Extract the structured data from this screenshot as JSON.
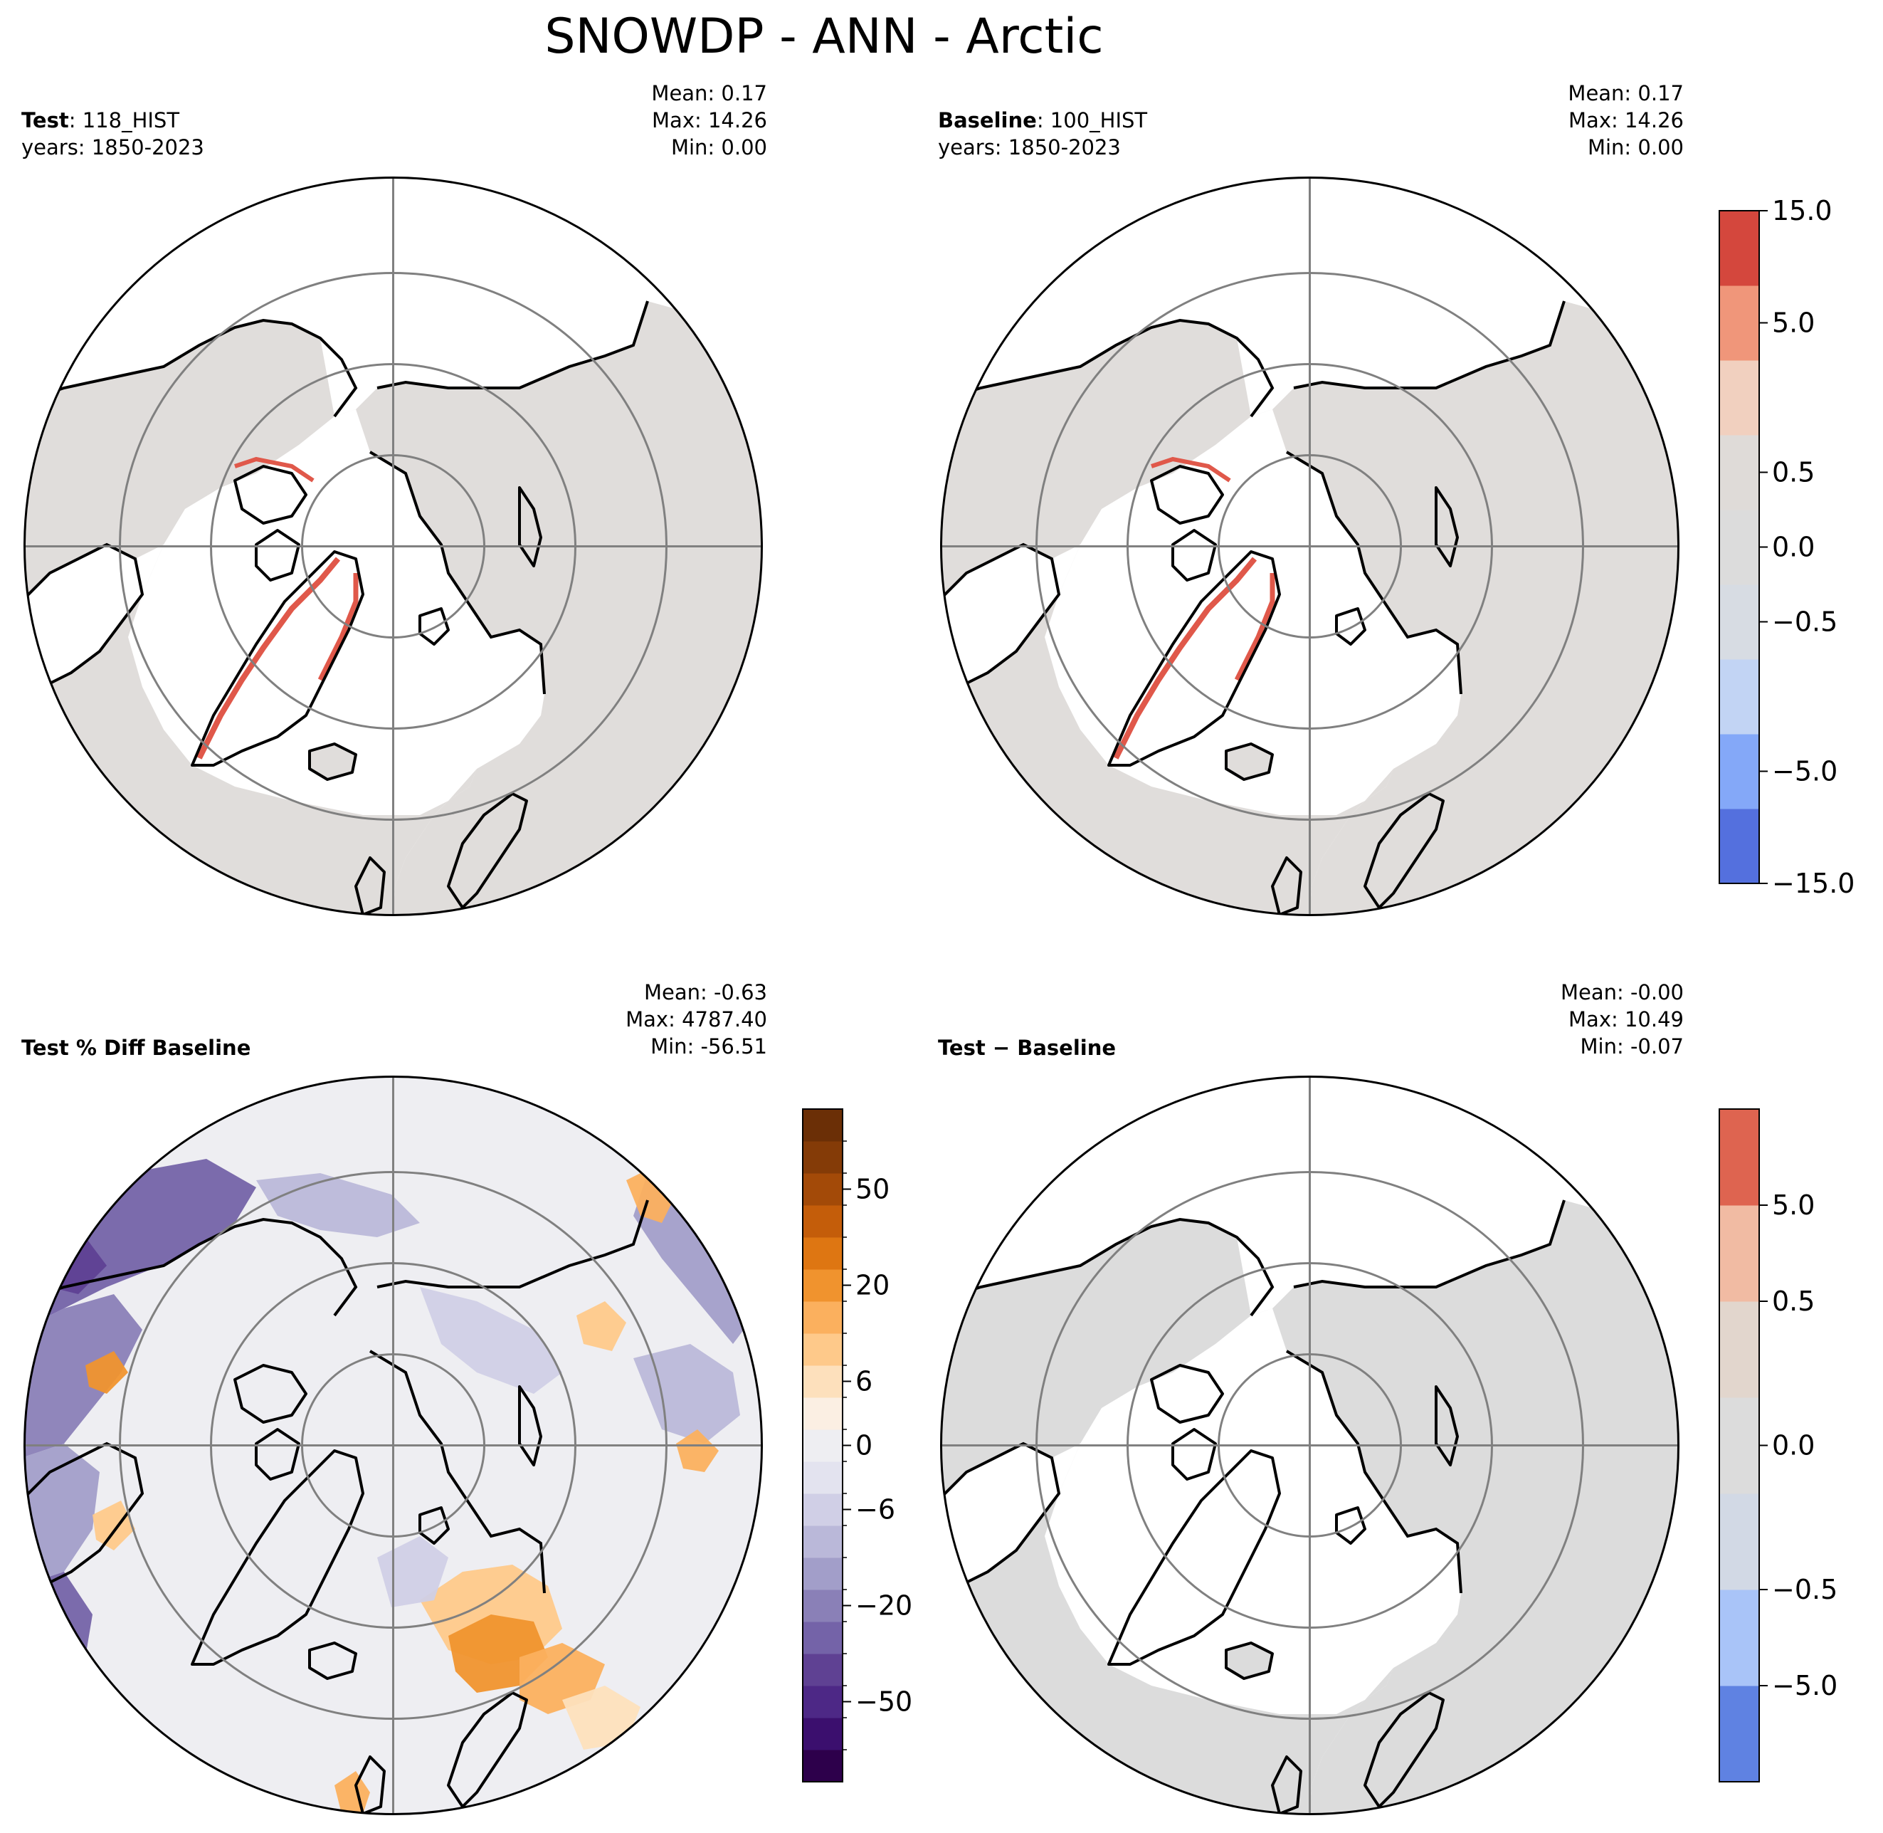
{
  "figure": {
    "title": "SNOWDP - ANN - Arctic"
  },
  "panels": [
    {
      "key": "test",
      "title_bold": "Test",
      "title_rest": ": 118_HIST",
      "subtitle": "years: 1850-2023",
      "stats": {
        "mean": "Mean:  0.17",
        "max": "Max: 14.26",
        "min": "Min:  0.00"
      }
    },
    {
      "key": "baseline",
      "title_bold": "Baseline",
      "title_rest": ": 100_HIST",
      "subtitle": "years: 1850-2023",
      "stats": {
        "mean": "Mean:  0.17",
        "max": "Max: 14.26",
        "min": "Min:  0.00"
      }
    },
    {
      "key": "pctdiff",
      "title_bold": "Test % Diff Baseline",
      "title_rest": "",
      "subtitle": "",
      "stats": {
        "mean": "Mean: -0.63",
        "max": "Max: 4787.40",
        "min": "Min: -56.51"
      }
    },
    {
      "key": "diff",
      "title_bold": "Test − Baseline",
      "title_rest": "",
      "subtitle": "",
      "stats": {
        "mean": "Mean: -0.00",
        "max": "Max: 10.49",
        "min": "Min: -0.07"
      }
    }
  ],
  "colorbars": {
    "main": {
      "ticks": [
        "15.0",
        "5.0",
        "0.5",
        "0.0",
        "−0.5",
        "−5.0",
        "−15.0"
      ],
      "colors": [
        "#5470de",
        "#84a8f8",
        "#c2d4f4",
        "#d7dce3",
        "#dcdcdc",
        "#dfdbd8",
        "#f1d0bf",
        "#f0967a",
        "#d4473d"
      ]
    },
    "pct": {
      "ticks": [
        "50",
        "20",
        "6",
        "0",
        "−6",
        "−20",
        "−50"
      ],
      "colors": [
        "#2d004b",
        "#3b0f6e",
        "#4d2886",
        "#5f4193",
        "#7463a8",
        "#8a80b7",
        "#a29ec9",
        "#bab8d9",
        "#d0cfe6",
        "#e3e3ef",
        "#eeeef2",
        "#fbefe3",
        "#fde0bc",
        "#fec98a",
        "#fbb05e",
        "#f0932e",
        "#de7612",
        "#c45d0a",
        "#a34a08",
        "#843b07",
        "#6b2f06"
      ]
    },
    "diff": {
      "ticks": [
        "5.0",
        "0.5",
        "0.0",
        "−0.5",
        "−5.0"
      ],
      "colors": [
        "#5f82e2",
        "#a9c4f8",
        "#d2d9e5",
        "#dcdcdc",
        "#e2d6cd",
        "#f1bba3",
        "#de6450"
      ]
    }
  },
  "chart_data": [
    {
      "type": "heatmap",
      "title": "Test: 118_HIST",
      "variable": "SNOWDP",
      "season": "ANN",
      "region": "Arctic",
      "years": "1850-2023",
      "mean": 0.17,
      "max": 14.26,
      "min": 0.0,
      "levels": [
        -15,
        -10,
        -5,
        -1,
        -0.5,
        0,
        0.5,
        1,
        5,
        15
      ]
    },
    {
      "type": "heatmap",
      "title": "Baseline: 100_HIST",
      "variable": "SNOWDP",
      "season": "ANN",
      "region": "Arctic",
      "years": "1850-2023",
      "mean": 0.17,
      "max": 14.26,
      "min": 0.0,
      "levels": [
        -15,
        -10,
        -5,
        -1,
        -0.5,
        0,
        0.5,
        1,
        5,
        15
      ]
    },
    {
      "type": "heatmap",
      "title": "Test % Diff Baseline",
      "mean": -0.63,
      "max": 4787.4,
      "min": -56.51,
      "colorbar_ticks": [
        -50,
        -20,
        -6,
        0,
        6,
        20,
        50
      ]
    },
    {
      "type": "heatmap",
      "title": "Test - Baseline",
      "mean": -0.0,
      "max": 10.49,
      "min": -0.07,
      "colorbar_ticks": [
        -5.0,
        -0.5,
        0.0,
        0.5,
        5.0
      ]
    }
  ]
}
